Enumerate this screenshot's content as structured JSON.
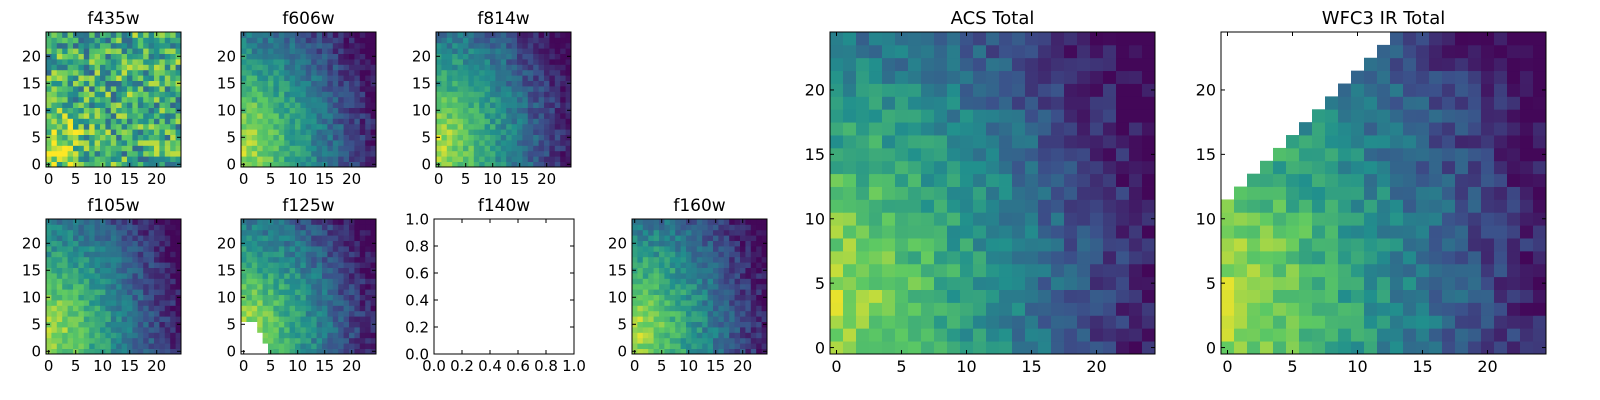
{
  "chart_data": [
    {
      "id": "f435w",
      "type": "heatmap",
      "title": "f435w",
      "grid_size": 25,
      "pattern": "noisy",
      "xticks": [
        "0",
        "5",
        "10",
        "15",
        "20"
      ],
      "yticks": [
        "0",
        "5",
        "10",
        "15",
        "20"
      ],
      "xlim": [
        -0.5,
        24.5
      ],
      "ylim": [
        -0.5,
        24.5
      ]
    },
    {
      "id": "f606w",
      "type": "heatmap",
      "title": "f606w",
      "grid_size": 25,
      "pattern": "gradient",
      "xticks": [
        "0",
        "5",
        "10",
        "15",
        "20"
      ],
      "yticks": [
        "0",
        "5",
        "10",
        "15",
        "20"
      ],
      "xlim": [
        -0.5,
        24.5
      ],
      "ylim": [
        -0.5,
        24.5
      ]
    },
    {
      "id": "f814w",
      "type": "heatmap",
      "title": "f814w",
      "grid_size": 25,
      "pattern": "gradient",
      "xticks": [
        "0",
        "5",
        "10",
        "15",
        "20"
      ],
      "yticks": [
        "0",
        "5",
        "10",
        "15",
        "20"
      ],
      "xlim": [
        -0.5,
        24.5
      ],
      "ylim": [
        -0.5,
        24.5
      ]
    },
    {
      "id": "f105w",
      "type": "heatmap",
      "title": "f105w",
      "grid_size": 25,
      "pattern": "gradient",
      "xticks": [
        "0",
        "5",
        "10",
        "15",
        "20"
      ],
      "yticks": [
        "0",
        "5",
        "10",
        "15",
        "20"
      ],
      "xlim": [
        -0.5,
        24.5
      ],
      "ylim": [
        -0.5,
        24.5
      ]
    },
    {
      "id": "f125w",
      "type": "heatmap",
      "title": "f125w",
      "grid_size": 25,
      "pattern": "gradient_masked_lower_left",
      "xticks": [
        "0",
        "5",
        "10",
        "15",
        "20"
      ],
      "yticks": [
        "0",
        "5",
        "10",
        "15",
        "20"
      ],
      "xlim": [
        -0.5,
        24.5
      ],
      "ylim": [
        -0.5,
        24.5
      ]
    },
    {
      "id": "f140w",
      "type": "heatmap",
      "title": "f140w",
      "empty": true,
      "xticks": [
        "0.0",
        "0.2",
        "0.4",
        "0.6",
        "0.8",
        "1.0"
      ],
      "yticks": [
        "0.0",
        "0.2",
        "0.4",
        "0.6",
        "0.8",
        "1.0"
      ],
      "xlim": [
        0,
        1
      ],
      "ylim": [
        0,
        1
      ]
    },
    {
      "id": "f160w",
      "type": "heatmap",
      "title": "f160w",
      "grid_size": 25,
      "pattern": "gradient",
      "xticks": [
        "0",
        "5",
        "10",
        "15",
        "20"
      ],
      "yticks": [
        "0",
        "5",
        "10",
        "15",
        "20"
      ],
      "xlim": [
        -0.5,
        24.5
      ],
      "ylim": [
        -0.5,
        24.5
      ]
    },
    {
      "id": "acs_total",
      "type": "heatmap",
      "title": "ACS Total",
      "grid_size": 25,
      "pattern": "gradient",
      "xticks": [
        "0",
        "5",
        "10",
        "15",
        "20"
      ],
      "yticks": [
        "0",
        "5",
        "10",
        "15",
        "20"
      ],
      "xlim": [
        -0.5,
        24.5
      ],
      "ylim": [
        -0.5,
        24.5
      ]
    },
    {
      "id": "wfc3_ir_total",
      "type": "heatmap",
      "title": "WFC3 IR Total",
      "grid_size": 25,
      "pattern": "gradient_masked_upper_left",
      "xticks": [
        "0",
        "5",
        "10",
        "15",
        "20"
      ],
      "yticks": [
        "0",
        "5",
        "10",
        "15",
        "20"
      ],
      "xlim": [
        -0.5,
        24.5
      ],
      "ylim": [
        -0.5,
        24.5
      ]
    }
  ],
  "colormap": [
    "#440154",
    "#3b528b",
    "#21908d",
    "#5dc963",
    "#fde725"
  ]
}
